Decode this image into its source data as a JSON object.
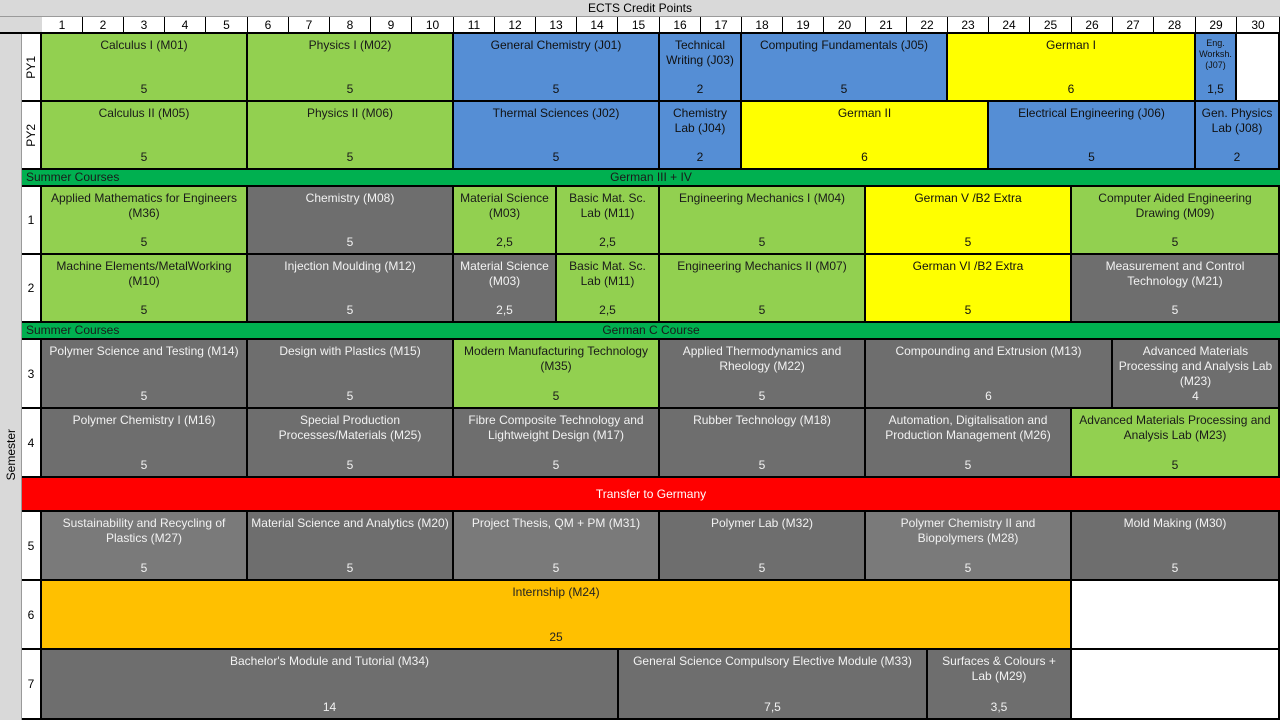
{
  "title": "ECTS Credit Points",
  "columns": [
    "1",
    "2",
    "3",
    "4",
    "5",
    "6",
    "7",
    "8",
    "9",
    "10",
    "11",
    "12",
    "13",
    "14",
    "15",
    "16",
    "17",
    "18",
    "19",
    "20",
    "21",
    "22",
    "23",
    "24",
    "25",
    "26",
    "27",
    "28",
    "29",
    "30"
  ],
  "side_label_semester": "Semester",
  "row_labels": {
    "py1": "PY1",
    "py2": "PY2",
    "s1": "1",
    "s2": "2",
    "s3": "3",
    "s4": "4",
    "s5": "5",
    "s6": "6",
    "s7": "7"
  },
  "bands": {
    "summer1_left": "Summer Courses",
    "summer1_center": "German III + IV",
    "summer2_left": "Summer Courses",
    "summer2_center": "German C Course",
    "transfer": "Transfer to Germany"
  },
  "colors": {
    "green": "#92d050",
    "blue": "#558ed5",
    "yellow": "#ffff00",
    "gray": "#6e6e6e",
    "orange": "#ffc000",
    "band_green": "#00b050",
    "red": "#ff0000"
  },
  "py1": [
    {
      "name": "Calculus I (M01)",
      "credits": "5",
      "color": "green"
    },
    {
      "name": "Physics I (M02)",
      "credits": "5",
      "color": "green"
    },
    {
      "name": "General Chemistry (J01)",
      "credits": "5",
      "color": "blue"
    },
    {
      "name": "Technical Writing (J03)",
      "credits": "2",
      "color": "blue"
    },
    {
      "name": "Computing Fundamentals (J05)",
      "credits": "5",
      "color": "blue"
    },
    {
      "name": "German I",
      "credits": "6",
      "color": "yellow"
    },
    {
      "name": "Eng. Worksh. (J07)",
      "credits": "1,5",
      "color": "blue"
    }
  ],
  "py2": [
    {
      "name": "Calculus II (M05)",
      "credits": "5",
      "color": "green"
    },
    {
      "name": "Physics II (M06)",
      "credits": "5",
      "color": "green"
    },
    {
      "name": "Thermal Sciences (J02)",
      "credits": "5",
      "color": "blue"
    },
    {
      "name": "Chemistry Lab (J04)",
      "credits": "2",
      "color": "blue"
    },
    {
      "name": "German II",
      "credits": "6",
      "color": "yellow"
    },
    {
      "name": "Electrical Engineering (J06)",
      "credits": "5",
      "color": "blue"
    },
    {
      "name": "Gen. Physics Lab (J08)",
      "credits": "2",
      "color": "blue"
    }
  ],
  "s1": [
    {
      "name": "Applied Mathematics for Engineers (M36)",
      "credits": "5",
      "color": "green"
    },
    {
      "name": "Chemistry (M08)",
      "credits": "5",
      "color": "gray"
    },
    {
      "name": "Material Science (M03)",
      "credits": "2,5",
      "color": "green"
    },
    {
      "name": "Basic Mat. Sc. Lab (M11)",
      "credits": "2,5",
      "color": "green"
    },
    {
      "name": "Engineering Mechanics I (M04)",
      "credits": "5",
      "color": "green"
    },
    {
      "name": "German V /B2 Extra",
      "credits": "5",
      "color": "yellow"
    },
    {
      "name": "Computer Aided Engineering Drawing (M09)",
      "credits": "5",
      "color": "green"
    }
  ],
  "s2": [
    {
      "name": "Machine Elements/MetalWorking (M10)",
      "credits": "5",
      "color": "green"
    },
    {
      "name": "Injection Moulding (M12)",
      "credits": "5",
      "color": "gray"
    },
    {
      "name": "Material Science (M03)",
      "credits": "2,5",
      "color": "gray"
    },
    {
      "name": "Basic Mat. Sc. Lab (M11)",
      "credits": "2,5",
      "color": "green"
    },
    {
      "name": "Engineering Mechanics II (M07)",
      "credits": "5",
      "color": "green"
    },
    {
      "name": "German VI /B2 Extra",
      "credits": "5",
      "color": "yellow"
    },
    {
      "name": "Measurement and Control Technology (M21)",
      "credits": "5",
      "color": "gray"
    }
  ],
  "s3": [
    {
      "name": "Polymer Science and Testing (M14)",
      "credits": "5",
      "color": "gray"
    },
    {
      "name": "Design with Plastics (M15)",
      "credits": "5",
      "color": "gray"
    },
    {
      "name": "Modern Manufacturing Technology (M35)",
      "credits": "5",
      "color": "green"
    },
    {
      "name": "Applied Thermodynamics and Rheology (M22)",
      "credits": "5",
      "color": "gray"
    },
    {
      "name": "Compounding and Extrusion (M13)",
      "credits": "6",
      "color": "gray"
    },
    {
      "name": "Advanced Materials Processing and Analysis Lab (M23)",
      "credits": "4",
      "color": "gray"
    }
  ],
  "s4": [
    {
      "name": "Polymer Chemistry I (M16)",
      "credits": "5",
      "color": "gray"
    },
    {
      "name": "Special Production Processes/Materials (M25)",
      "credits": "5",
      "color": "gray"
    },
    {
      "name": "Fibre Composite Technology and Lightweight Design (M17)",
      "credits": "5",
      "color": "gray"
    },
    {
      "name": "Rubber Technology (M18)",
      "credits": "5",
      "color": "gray"
    },
    {
      "name": "Automation, Digitalisation and Production Management (M26)",
      "credits": "5",
      "color": "gray"
    },
    {
      "name": "Advanced Materials Processing and Analysis Lab (M23)",
      "credits": "5",
      "color": "green"
    }
  ],
  "s5": [
    {
      "name": "Sustainability and Recycling of Plastics (M27)",
      "credits": "5",
      "color": "gray"
    },
    {
      "name": "Material Science and Analytics (M20)",
      "credits": "5",
      "color": "gray"
    },
    {
      "name": "Project Thesis, QM + PM (M31)",
      "credits": "5",
      "color": "gray"
    },
    {
      "name": "Polymer Lab (M32)",
      "credits": "5",
      "color": "gray"
    },
    {
      "name": "Polymer Chemistry II and Biopolymers (M28)",
      "credits": "5",
      "color": "gray"
    },
    {
      "name": "Mold Making (M30)",
      "credits": "5",
      "color": "gray"
    }
  ],
  "s6": [
    {
      "name": "Internship (M24)",
      "credits": "25",
      "color": "orange"
    }
  ],
  "s7": [
    {
      "name": "Bachelor's Module and Tutorial (M34)",
      "credits": "14",
      "color": "gray"
    },
    {
      "name": "General Science Compulsory Elective Module (M33)",
      "credits": "7,5",
      "color": "gray"
    },
    {
      "name": "Surfaces & Colours + Lab (M29)",
      "credits": "3,5",
      "color": "gray"
    }
  ]
}
